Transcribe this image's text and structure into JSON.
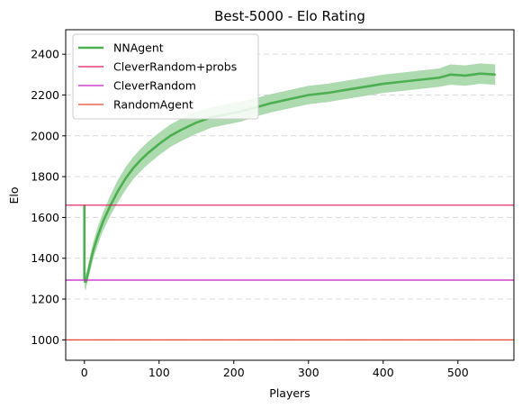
{
  "chart_data": {
    "type": "line",
    "title": "Best-5000 - Elo Rating",
    "xlabel": "Players",
    "ylabel": "Elo",
    "xlim": [
      -25,
      575
    ],
    "ylim": [
      900,
      2520
    ],
    "xticks": [
      0,
      100,
      200,
      300,
      400,
      500
    ],
    "yticks": [
      1000,
      1200,
      1400,
      1600,
      1800,
      2000,
      2200,
      2400
    ],
    "grid": "horizontal-dashed",
    "legend_position": "top-left",
    "series": [
      {
        "name": "NNAgent",
        "kind": "line-with-band",
        "color": "#4caf50",
        "band_color": "#a5d6a7",
        "x": [
          0,
          0,
          1,
          2,
          3,
          5,
          8,
          12,
          18,
          25,
          35,
          45,
          55,
          65,
          75,
          85,
          100,
          115,
          130,
          150,
          170,
          190,
          210,
          230,
          250,
          275,
          300,
          325,
          350,
          375,
          400,
          425,
          450,
          475,
          490,
          510,
          530,
          550
        ],
        "values": [
          1660,
          1300,
          1285,
          1285,
          1300,
          1330,
          1380,
          1440,
          1510,
          1580,
          1660,
          1730,
          1790,
          1840,
          1880,
          1915,
          1960,
          2000,
          2030,
          2065,
          2090,
          2105,
          2120,
          2140,
          2160,
          2180,
          2200,
          2210,
          2225,
          2240,
          2255,
          2265,
          2275,
          2285,
          2300,
          2295,
          2305,
          2300
        ],
        "band_half_width": [
          10,
          30,
          40,
          40,
          35,
          35,
          40,
          40,
          45,
          45,
          50,
          55,
          55,
          55,
          55,
          55,
          55,
          55,
          55,
          55,
          50,
          50,
          50,
          45,
          45,
          45,
          45,
          45,
          45,
          45,
          45,
          45,
          45,
          45,
          50,
          50,
          50,
          50
        ]
      },
      {
        "name": "CleverRandom+probs",
        "kind": "hline",
        "color": "#e0185c",
        "value": 1660
      },
      {
        "name": "CleverRandom",
        "kind": "hline",
        "color": "#c51fc5",
        "value": 1293
      },
      {
        "name": "RandomAgent",
        "kind": "hline",
        "color": "#e8482e",
        "value": 1000
      }
    ]
  }
}
